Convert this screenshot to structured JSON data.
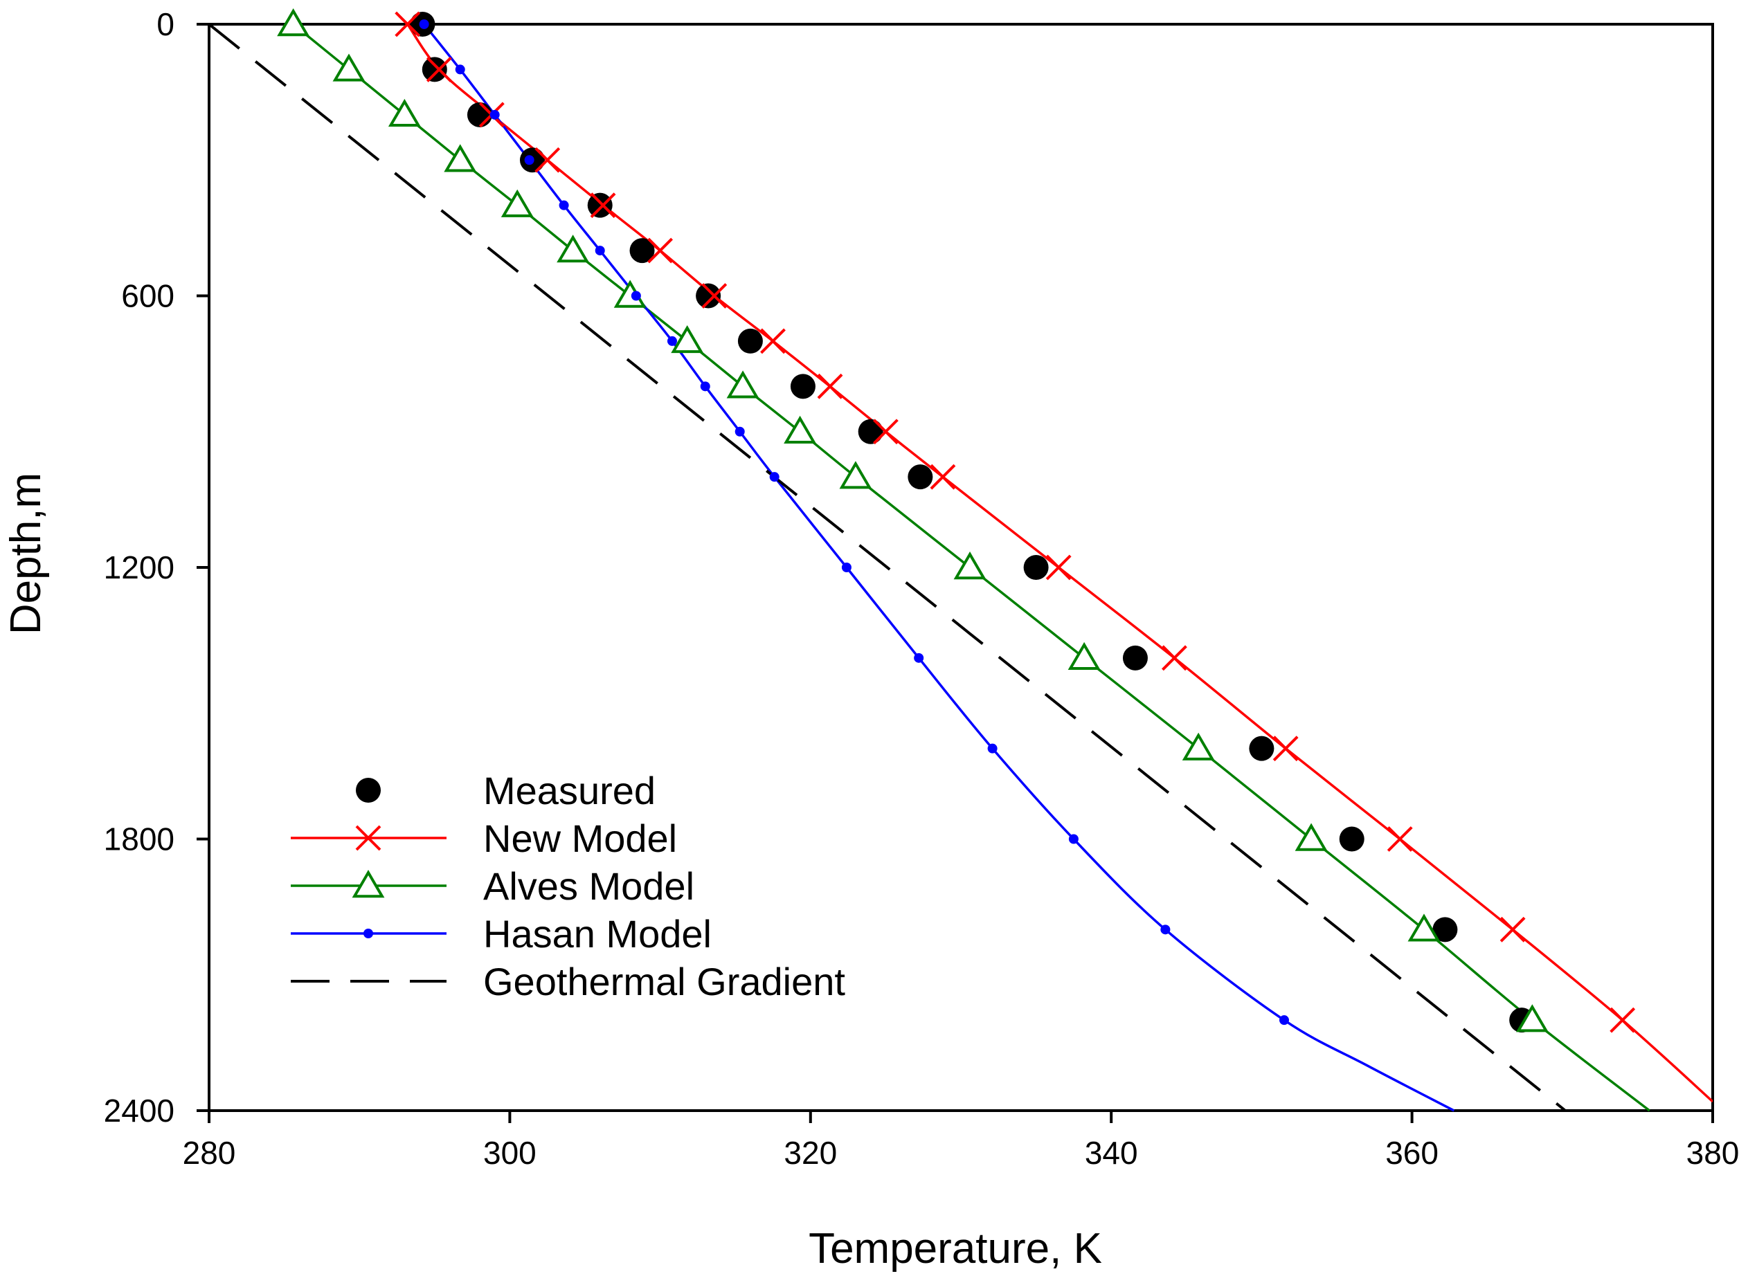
{
  "chart_data": {
    "type": "line",
    "title": "",
    "xlabel": "Temperature, K",
    "ylabel": "Depth,m",
    "xlim": [
      280,
      380
    ],
    "ylim": [
      0,
      2400
    ],
    "y_inverted": true,
    "xticks": [
      280,
      300,
      320,
      340,
      360,
      380
    ],
    "yticks": [
      0,
      600,
      1200,
      1800,
      2400
    ],
    "grid": false,
    "legend_position": "bottom-left",
    "colors": {
      "measured": "#000000",
      "new_model": "#ff0000",
      "alves_model": "#008000",
      "hasan_model": "#0000ff",
      "geothermal": "#000000"
    },
    "series": [
      {
        "name": "Measured",
        "style": "markers",
        "marker": "circle",
        "points": [
          [
            294.2,
            0
          ],
          [
            295.0,
            100
          ],
          [
            298.0,
            200
          ],
          [
            301.5,
            300
          ],
          [
            306.0,
            400
          ],
          [
            308.8,
            500
          ],
          [
            313.2,
            600
          ],
          [
            316.0,
            700
          ],
          [
            319.5,
            800
          ],
          [
            324.0,
            900
          ],
          [
            327.3,
            1000
          ],
          [
            335.0,
            1200
          ],
          [
            341.6,
            1400
          ],
          [
            350.0,
            1600
          ],
          [
            356.0,
            1800
          ],
          [
            362.2,
            2000
          ],
          [
            367.3,
            2200
          ]
        ]
      },
      {
        "name": "New Model",
        "style": "line+markers",
        "marker": "x",
        "points": [
          [
            293.2,
            0
          ],
          [
            295.3,
            100
          ],
          [
            298.8,
            200
          ],
          [
            302.5,
            300
          ],
          [
            306.2,
            400
          ],
          [
            310.0,
            500
          ],
          [
            313.6,
            600
          ],
          [
            317.5,
            700
          ],
          [
            321.3,
            800
          ],
          [
            325.0,
            900
          ],
          [
            328.8,
            1000
          ],
          [
            336.5,
            1200
          ],
          [
            344.2,
            1400
          ],
          [
            351.6,
            1600
          ],
          [
            359.2,
            1800
          ],
          [
            366.7,
            2000
          ],
          [
            374.0,
            2200
          ]
        ],
        "line_extension": [
          [
            380.0,
            2380
          ]
        ]
      },
      {
        "name": "Alves Model",
        "style": "line+markers",
        "marker": "triangle",
        "points": [
          [
            285.6,
            0
          ],
          [
            289.3,
            100
          ],
          [
            293.0,
            200
          ],
          [
            296.7,
            300
          ],
          [
            300.5,
            400
          ],
          [
            304.2,
            500
          ],
          [
            308.0,
            600
          ],
          [
            311.8,
            700
          ],
          [
            315.5,
            800
          ],
          [
            319.3,
            900
          ],
          [
            323.0,
            1000
          ],
          [
            330.6,
            1200
          ],
          [
            338.2,
            1400
          ],
          [
            345.8,
            1600
          ],
          [
            353.3,
            1800
          ],
          [
            360.8,
            2000
          ],
          [
            368.0,
            2200
          ]
        ],
        "line_extension": [
          [
            375.8,
            2400
          ]
        ]
      },
      {
        "name": "Hasan Model",
        "style": "line+markers",
        "marker": "dot",
        "points": [
          [
            294.3,
            0
          ],
          [
            296.7,
            100
          ],
          [
            299.0,
            200
          ],
          [
            301.3,
            300
          ],
          [
            303.6,
            400
          ],
          [
            306.0,
            500
          ],
          [
            308.4,
            600
          ],
          [
            310.8,
            700
          ],
          [
            313.0,
            800
          ],
          [
            315.3,
            900
          ],
          [
            317.6,
            1000
          ],
          [
            322.4,
            1200
          ],
          [
            327.2,
            1400
          ],
          [
            332.1,
            1600
          ],
          [
            337.5,
            1800
          ],
          [
            343.6,
            2000
          ],
          [
            351.5,
            2200
          ]
        ],
        "line_extension": [
          [
            357.0,
            2300
          ],
          [
            362.8,
            2400
          ]
        ]
      },
      {
        "name": "Geothermal Gradient",
        "style": "dashed-line",
        "marker": "none",
        "points": [
          [
            280.0,
            0
          ],
          [
            370.2,
            2400
          ]
        ]
      }
    ]
  }
}
